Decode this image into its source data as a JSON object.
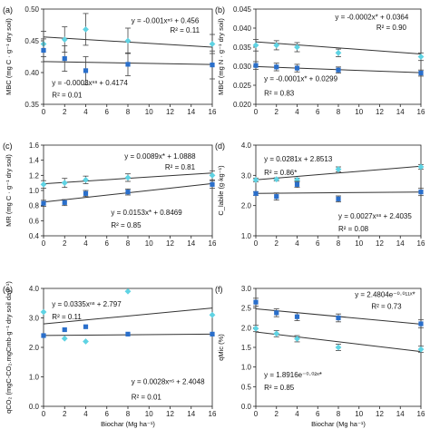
{
  "colors": {
    "dark_series": "#2a6fcb",
    "light_series": "#5fd3e3",
    "axis": "#222222",
    "fit_line": "#333333"
  },
  "chart_data": [
    {
      "id": "a",
      "panel_label": "(a)",
      "type": "scatter",
      "ylabel": "MBC (mg C · g⁻¹ dry soil)",
      "xlabel": "",
      "xlim": [
        0,
        16
      ],
      "ylim": [
        0.35,
        0.5
      ],
      "xticks": [
        "0",
        "2",
        "4",
        "6",
        "8",
        "10",
        "12",
        "14",
        "16"
      ],
      "yticks": [
        "0.35",
        "0.40",
        "0.45",
        "0.50"
      ],
      "x": [
        0,
        2,
        4,
        8,
        16
      ],
      "series": [
        {
          "style": "light",
          "values": [
            0.445,
            0.452,
            0.468,
            0.45,
            0.445
          ],
          "errors": [
            0.02,
            0.02,
            0.025,
            0.02,
            0.015
          ],
          "fit": [
            0.456,
            0.44
          ]
        },
        {
          "style": "dark",
          "values": [
            0.435,
            0.422,
            0.403,
            0.413,
            0.412
          ],
          "errors": [
            0.018,
            0.02,
            0.022,
            0.018,
            0.022
          ],
          "fit": [
            0.4174,
            0.4126
          ]
        }
      ],
      "annotations": [
        "y = -0.001xⁿˢ + 0.456",
        "R² = 0.11",
        "y = -0.0003xⁿˢ + 0.4174",
        "R² = 0.01"
      ]
    },
    {
      "id": "b",
      "panel_label": "(b)",
      "type": "scatter",
      "ylabel": "MBC (mg N · g⁻¹ dry soil)",
      "xlabel": "",
      "xlim": [
        0,
        16
      ],
      "ylim": [
        0.02,
        0.045
      ],
      "xticks": [
        "0",
        "2",
        "4",
        "6",
        "8",
        "10",
        "12",
        "14",
        "16"
      ],
      "yticks": [
        "0.020",
        "0.025",
        "0.030",
        "0.035",
        "0.040",
        "0.045"
      ],
      "x": [
        0,
        2,
        4,
        8,
        16
      ],
      "series": [
        {
          "style": "light",
          "values": [
            0.0355,
            0.0355,
            0.035,
            0.0335,
            0.0325
          ],
          "errors": [
            0.0015,
            0.0012,
            0.0012,
            0.001,
            0.001
          ],
          "fit": [
            0.0364,
            0.0332
          ]
        },
        {
          "style": "dark",
          "values": [
            0.0302,
            0.0298,
            0.0295,
            0.029,
            0.0282
          ],
          "errors": [
            0.001,
            0.001,
            0.001,
            0.0008,
            0.0008
          ],
          "fit": [
            0.0299,
            0.0283
          ]
        }
      ],
      "annotations": [
        "y = -0.0002x* + 0.0364",
        "R² = 0.90",
        "y = -0.0001x* + 0.0299",
        "R² = 0.83"
      ]
    },
    {
      "id": "c",
      "panel_label": "(c)",
      "type": "scatter",
      "ylabel": "MR (mg C · g⁻¹ dry soil)",
      "xlabel": "",
      "xlim": [
        0,
        16
      ],
      "ylim": [
        0.4,
        1.6
      ],
      "xticks": [
        "0",
        "2",
        "4",
        "6",
        "8",
        "10",
        "12",
        "14",
        "16"
      ],
      "yticks": [
        "0.4",
        "0.6",
        "0.8",
        "1.0",
        "1.2",
        "1.4",
        "1.6"
      ],
      "x": [
        0,
        2,
        4,
        8,
        16
      ],
      "series": [
        {
          "style": "light",
          "values": [
            1.08,
            1.1,
            1.14,
            1.17,
            1.2
          ],
          "errors": [
            0.05,
            0.06,
            0.05,
            0.05,
            0.06
          ],
          "fit": [
            1.0888,
            1.2312
          ]
        },
        {
          "style": "dark",
          "values": [
            0.83,
            0.84,
            0.96,
            0.98,
            1.08
          ],
          "errors": [
            0.04,
            0.04,
            0.04,
            0.04,
            0.05
          ],
          "fit": [
            0.8469,
            1.0917
          ]
        }
      ],
      "annotations": [
        "y = 0.0089x* + 1.0888",
        "R² = 0.81",
        "y = 0.0153x* + 0.8469",
        "R² = 0.85"
      ]
    },
    {
      "id": "d",
      "panel_label": "(d)",
      "type": "scatter",
      "ylabel": "C_labile (g·kg⁻¹)",
      "xlabel": "",
      "xlim": [
        0,
        16
      ],
      "ylim": [
        1.0,
        4.0
      ],
      "xticks": [
        "0",
        "2",
        "4",
        "6",
        "8",
        "10",
        "12",
        "14",
        "16"
      ],
      "yticks": [
        "1.0",
        "2.0",
        "3.0",
        "4.0"
      ],
      "x": [
        0,
        2,
        4,
        8,
        16
      ],
      "series": [
        {
          "style": "light",
          "values": [
            2.85,
            2.87,
            2.85,
            3.2,
            3.28
          ],
          "errors": [
            0.06,
            0.05,
            0.06,
            0.08,
            0.08
          ],
          "fit": [
            2.8513,
            3.3009
          ]
        },
        {
          "style": "dark",
          "values": [
            2.4,
            2.3,
            2.7,
            2.22,
            2.45
          ],
          "errors": [
            0.06,
            0.12,
            0.1,
            0.1,
            0.12
          ],
          "fit": [
            2.4035,
            2.4467
          ]
        }
      ],
      "annotations": [
        "y = 0.0281x + 2.8513",
        "R² = 0.86*",
        "y = 0.0027xⁿˢ + 2.4035",
        "R² = 0.08"
      ]
    },
    {
      "id": "e",
      "panel_label": "(e)",
      "type": "scatter",
      "ylabel": "qCO₂ (mgC-CO₂.mgCmb·g⁻¹ dry soil day⁻¹)",
      "xlabel": "Biochar (Mg ha⁻¹)",
      "xlim": [
        0,
        16
      ],
      "ylim": [
        0.0,
        4.0
      ],
      "xticks": [
        "0",
        "2",
        "4",
        "6",
        "8",
        "10",
        "12",
        "14",
        "16"
      ],
      "yticks": [
        "0.0",
        "1.0",
        "2.0",
        "3.0",
        "4.0"
      ],
      "x": [
        0,
        2,
        4,
        8,
        16
      ],
      "series": [
        {
          "style": "light",
          "values": [
            3.2,
            2.3,
            2.2,
            3.9,
            3.1
          ],
          "errors": [
            0,
            0,
            0,
            0,
            0
          ],
          "fit": [
            2.797,
            3.333
          ]
        },
        {
          "style": "dark",
          "values": [
            2.4,
            2.6,
            2.7,
            2.45,
            2.45
          ],
          "errors": [
            0,
            0,
            0,
            0,
            0
          ],
          "fit": [
            2.4048,
            2.4496
          ]
        }
      ],
      "annotations": [
        "y = 0.0335xⁿˢ + 2.797",
        "R² = 0.11",
        "y = 0.0028xⁿˢ + 2.4048",
        "R² = 0.01"
      ]
    },
    {
      "id": "f",
      "panel_label": "(f)",
      "type": "scatter",
      "ylabel": "qMic (%)",
      "xlabel": "Biochar (Mg ha⁻¹)",
      "xlim": [
        0,
        16
      ],
      "ylim": [
        0.0,
        3.0
      ],
      "xticks": [
        "0",
        "2",
        "4",
        "6",
        "8",
        "10",
        "12",
        "14",
        "16"
      ],
      "yticks": [
        "0.0",
        "0.5",
        "1.0",
        "1.5",
        "2.0",
        "2.5",
        "3.0"
      ],
      "x": [
        0,
        2,
        4,
        8,
        16
      ],
      "series": [
        {
          "style": "dark",
          "values": [
            2.65,
            2.38,
            2.28,
            2.25,
            2.1
          ],
          "errors": [
            0.1,
            0.1,
            0.1,
            0.1,
            0.1
          ],
          "fit": [
            2.4804,
            2.09
          ]
        },
        {
          "style": "light",
          "values": [
            1.98,
            1.85,
            1.72,
            1.5,
            1.45
          ],
          "errors": [
            0.08,
            0.08,
            0.08,
            0.08,
            0.08
          ],
          "fit": [
            1.8916,
            1.3926
          ]
        }
      ],
      "annotations": [
        "y = 2.4804e⁻⁰·⁰¹¹ˣ*",
        "R² = 0.73",
        "y = 1.8916e⁻⁰·⁰²ˣ*",
        "R² = 0.85"
      ]
    }
  ]
}
